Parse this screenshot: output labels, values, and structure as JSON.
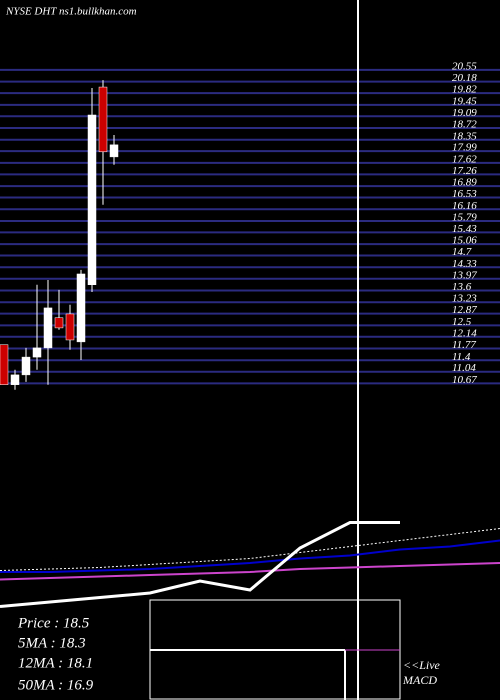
{
  "chart_data": [
    {
      "type": "candlestick",
      "title": "NYSE DHT ns1.bullkhan.com",
      "open": [
        11.89,
        10.63,
        10.94,
        11.5,
        11.79,
        12.74,
        12.86,
        11.98,
        13.78,
        20.01,
        17.81
      ],
      "high": [
        11.89,
        11.1,
        11.79,
        13.78,
        13.93,
        13.62,
        13.15,
        14.25,
        19.98,
        20.23,
        18.5
      ],
      "low": [
        10.63,
        10.47,
        10.72,
        11.1,
        10.63,
        12.36,
        11.73,
        11.41,
        13.55,
        16.3,
        17.56
      ],
      "close": [
        10.63,
        10.94,
        11.5,
        11.79,
        13.05,
        12.42,
        12.04,
        14.12,
        19.13,
        17.97,
        18.19
      ],
      "up_color": "#ffffff",
      "down_color": "#cc0000",
      "ylim": [
        10.4,
        20.8
      ],
      "yticks": [
        20.55,
        20.18,
        19.82,
        19.45,
        19.09,
        18.72,
        18.35,
        17.99,
        17.62,
        17.26,
        16.89,
        16.53,
        16.16,
        15.79,
        15.43,
        15.06,
        14.7,
        14.33,
        13.97,
        13.6,
        13.23,
        12.87,
        12.5,
        12.14,
        11.77,
        11.4,
        11.04,
        10.67
      ],
      "grid": true,
      "grid_color": "#2b2b80"
    },
    {
      "type": "line",
      "ylim": [
        0,
        100
      ],
      "series": [
        {
          "color": "#ffffff",
          "style": "dotted",
          "values": [
            53,
            54,
            55,
            57,
            59,
            61,
            65,
            69,
            73,
            77,
            81
          ]
        },
        {
          "color": "#0000cc",
          "style": "solid",
          "values": [
            52,
            52,
            53,
            54,
            56,
            58,
            61,
            63,
            67,
            69,
            73
          ]
        },
        {
          "color": "#cc44cc",
          "style": "solid",
          "values": [
            47,
            48,
            49,
            50,
            51,
            52,
            54,
            55,
            56,
            57,
            58
          ]
        },
        {
          "color": "#ffffff",
          "style": "thick",
          "values": [
            29,
            32,
            35,
            38,
            46,
            40,
            68,
            85,
            85,
            null,
            null
          ]
        }
      ]
    }
  ],
  "stats": [
    "Price  : 18.5",
    "5MA  : 18.3",
    "12MA : 18.1",
    "50MA : 16.9"
  ],
  "live": "<<Live",
  "macd": "MACD"
}
